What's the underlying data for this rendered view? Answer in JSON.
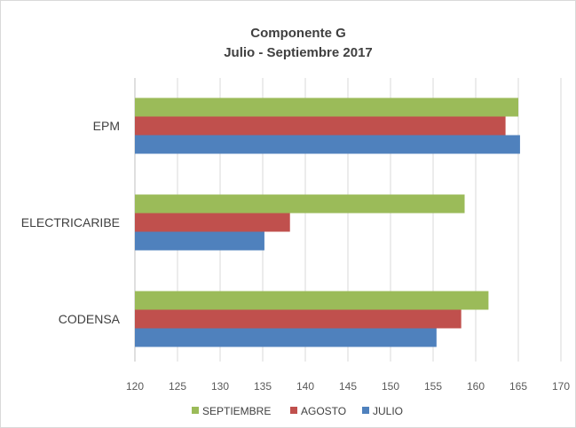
{
  "chart_data": {
    "type": "bar",
    "orientation": "horizontal",
    "title": "Componente G",
    "subtitle": "Julio - Septiembre 2017",
    "categories": [
      "EPM",
      "ELECTRICARIBE",
      "CODENSA"
    ],
    "series": [
      {
        "name": "SEPTIEMBRE",
        "color": "#9bbb59",
        "values": [
          165.0,
          158.7,
          161.5
        ]
      },
      {
        "name": "AGOSTO",
        "color": "#c0504d",
        "values": [
          163.5,
          138.2,
          158.3
        ]
      },
      {
        "name": "JULIO",
        "color": "#4f81bd",
        "values": [
          165.2,
          135.2,
          155.4
        ]
      }
    ],
    "xlim": [
      120,
      170
    ],
    "xticks": [
      120,
      125,
      130,
      135,
      140,
      145,
      150,
      155,
      160,
      165,
      170
    ],
    "grid": true,
    "legend_position": "bottom"
  }
}
